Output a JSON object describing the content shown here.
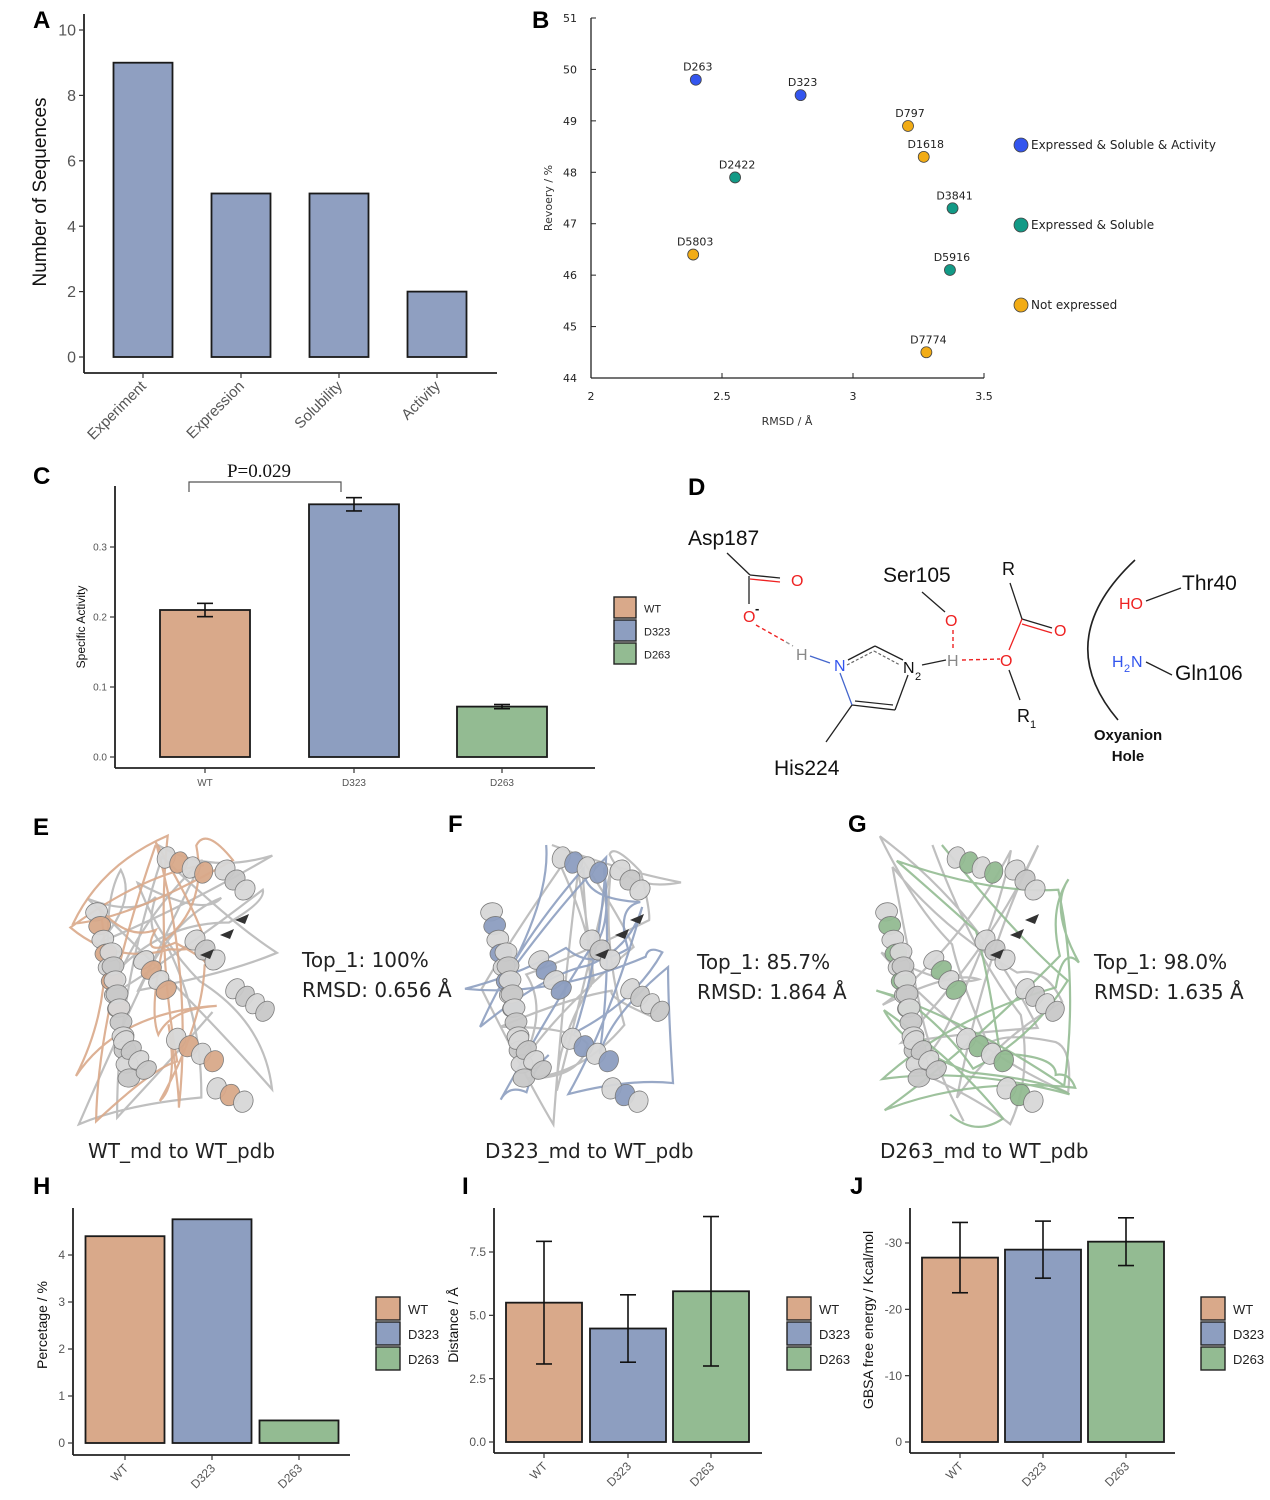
{
  "panel_labels": {
    "A": "A",
    "B": "B",
    "C": "C",
    "D": "D",
    "E": "E",
    "F": "F",
    "G": "G",
    "H": "H",
    "I": "I",
    "J": "J"
  },
  "colors": {
    "wt": "#d9a98a",
    "d323": "#8d9ec0",
    "d263": "#93bb92",
    "bar_a": "#8f9fc1",
    "expressed_soluble_activity": "#3355ee",
    "expressed_soluble": "#129a86",
    "not_expressed": "#f2ac15",
    "oxygen": "#ee2222",
    "nitrogen": "#3355ee",
    "hydrogen": "#888888"
  },
  "chart_data": [
    {
      "panel": "A",
      "type": "bar",
      "categories": [
        "Experiment",
        "Expression",
        "Solubility",
        "Activity"
      ],
      "values": [
        9,
        5,
        5,
        2
      ],
      "ylabel": "Number of Sequences",
      "xlabel": "",
      "ylim": [
        0,
        10
      ],
      "yticks": [
        "0",
        "2",
        "4",
        "6",
        "8",
        "10"
      ],
      "ytick_values": [
        0,
        2,
        4,
        6,
        8,
        10
      ],
      "grid": false
    },
    {
      "panel": "B",
      "type": "scatter",
      "xlabel": "RMSD / Å",
      "ylabel": "Revoery / %",
      "xlim": [
        2,
        3.5
      ],
      "ylim": [
        44,
        51
      ],
      "xticks": [
        "2",
        "2.5",
        "3",
        "3.5"
      ],
      "xtick_values": [
        2,
        2.5,
        3,
        3.5
      ],
      "yticks": [
        "44",
        "45",
        "46",
        "47",
        "48",
        "49",
        "50",
        "51"
      ],
      "ytick_values": [
        44,
        45,
        46,
        47,
        48,
        49,
        50,
        51
      ],
      "legend_position": "right",
      "series": [
        {
          "name": "Expressed & Soluble & Activity",
          "color_key": "expressed_soluble_activity",
          "points": [
            {
              "label": "D263",
              "x": 2.4,
              "y": 49.8
            },
            {
              "label": "D323",
              "x": 2.8,
              "y": 49.5
            }
          ]
        },
        {
          "name": "Expressed & Soluble",
          "color_key": "expressed_soluble",
          "points": [
            {
              "label": "D2422",
              "x": 2.55,
              "y": 47.9
            },
            {
              "label": "D3841",
              "x": 3.38,
              "y": 47.3
            },
            {
              "label": "D5916",
              "x": 3.37,
              "y": 46.1
            }
          ]
        },
        {
          "name": "Not expressed",
          "color_key": "not_expressed",
          "points": [
            {
              "label": "D797",
              "x": 3.21,
              "y": 48.9
            },
            {
              "label": "D1618",
              "x": 3.27,
              "y": 48.3
            },
            {
              "label": "D5803",
              "x": 2.39,
              "y": 46.4
            },
            {
              "label": "D7774",
              "x": 3.28,
              "y": 44.5
            }
          ]
        }
      ]
    },
    {
      "panel": "C",
      "type": "bar",
      "categories": [
        "WT",
        "D323",
        "D263"
      ],
      "values": [
        0.21,
        0.361,
        0.072
      ],
      "errors": [
        0.0095,
        0.0095,
        0.003
      ],
      "ylabel": "Specific Activity",
      "ylim": [
        0,
        0.385
      ],
      "yticks": [
        "0.0",
        "0.1",
        "0.2",
        "0.3"
      ],
      "ytick_values": [
        0,
        0.1,
        0.2,
        0.3
      ],
      "annotation": {
        "text": "P=0.029",
        "between": [
          "WT",
          "D323"
        ]
      },
      "legend": [
        "WT",
        "D323",
        "D263"
      ],
      "legend_position": "right"
    },
    {
      "panel": "H",
      "type": "bar",
      "categories": [
        "WT",
        "D323",
        "D263"
      ],
      "values": [
        4.4,
        4.76,
        0.48
      ],
      "ylabel": "Percetage / %",
      "ylim": [
        0,
        4.9
      ],
      "yticks": [
        "0",
        "1",
        "2",
        "3",
        "4"
      ],
      "ytick_values": [
        0,
        1,
        2,
        3,
        4
      ],
      "legend": [
        "WT",
        "D323",
        "D263"
      ],
      "legend_position": "right"
    },
    {
      "panel": "I",
      "type": "bar",
      "categories": [
        "WT",
        "D323",
        "D263"
      ],
      "values": [
        5.5,
        4.48,
        5.95
      ],
      "errors": [
        2.42,
        1.33,
        2.95
      ],
      "ylabel": "Distance / Å",
      "ylim": [
        0,
        9.2
      ],
      "yticks": [
        "0.0",
        "2.5",
        "5.0",
        "7.5"
      ],
      "ytick_values": [
        0,
        2.5,
        5,
        7.5
      ],
      "legend": [
        "WT",
        "D323",
        "D263"
      ],
      "legend_position": "right"
    },
    {
      "panel": "J",
      "type": "bar",
      "categories": [
        "WT",
        "D323",
        "D263"
      ],
      "values": [
        -27.8,
        -29.0,
        -30.2
      ],
      "errors": [
        5.3,
        4.3,
        3.6
      ],
      "ylabel": "GBSA free energy / Kcal/mol",
      "ylim": [
        0,
        -35
      ],
      "yticks": [
        "0",
        "-10",
        "-20",
        "-30"
      ],
      "ytick_values": [
        0,
        -10,
        -20,
        -30
      ],
      "legend": [
        "WT",
        "D323",
        "D263"
      ],
      "legend_position": "right"
    }
  ],
  "diagram_d": {
    "asp": "Asp187",
    "ser": "Ser105",
    "his": "His224",
    "thr": "Thr40",
    "gln": "Gln106",
    "r": "R",
    "r1": "R",
    "r1_sub": "1",
    "n2_sub": "2",
    "oxyanion_line1": "Oxyanion",
    "oxyanion_line2": "Hole",
    "o": "O",
    "o_minus": "O",
    "minus": "-",
    "h": "H",
    "n": "N",
    "ho": "HO",
    "h2n_h": "H",
    "h2n_sub": "2",
    "h2n_n": "N"
  },
  "structures": [
    {
      "panel": "E",
      "top1": "Top_1: 100%",
      "rmsd": "RMSD: 0.656 Å",
      "caption": "WT_md to WT_pdb",
      "color_key": "wt"
    },
    {
      "panel": "F",
      "top1": "Top_1: 85.7%",
      "rmsd": "RMSD: 1.864 Å",
      "caption": "D323_md to WT_pdb",
      "color_key": "d323"
    },
    {
      "panel": "G",
      "top1": "Top_1: 98.0%",
      "rmsd": "RMSD: 1.635 Å",
      "caption": "D263_md to WT_pdb",
      "color_key": "d263"
    }
  ]
}
